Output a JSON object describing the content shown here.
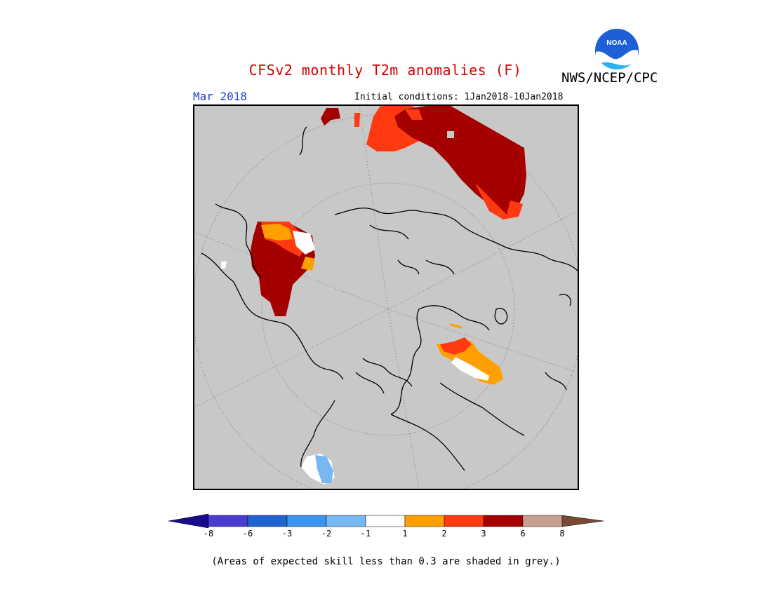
{
  "header": {
    "title": "CFSv2 monthly T2m anomalies (F)",
    "agency": "NWS/NCEP/CPC",
    "logo_text": "NOAA",
    "valid_month": "Mar 2018",
    "initial_conditions": "Initial conditions: 1Jan2018-10Jan2018"
  },
  "colors": {
    "title": "#d50000",
    "valid_month": "#1d3fe0",
    "map_background": "#c8c8c8",
    "coast": "#000000",
    "graticule": "#888888"
  },
  "legend": {
    "bins": [
      {
        "range": "< -8",
        "color": "#1a0a8c"
      },
      {
        "range": "-8 to -6",
        "color": "#4b3cd0"
      },
      {
        "range": "-6 to -3",
        "color": "#1f63d0"
      },
      {
        "range": "-3 to -2",
        "color": "#3b95f0"
      },
      {
        "range": "-2 to -1",
        "color": "#78b8f2"
      },
      {
        "range": "-1 to 1",
        "color": "#ffffff"
      },
      {
        "range": "1 to 2",
        "color": "#ffa000"
      },
      {
        "range": "2 to 3",
        "color": "#ff3a10"
      },
      {
        "range": "3 to 6",
        "color": "#a50000"
      },
      {
        "range": "6 to 8",
        "color": "#c8a090"
      },
      {
        "range": "> 8",
        "color": "#7a4a30"
      }
    ],
    "ticks": [
      "-8",
      "-6",
      "-3",
      "-2",
      "-1",
      "1",
      "2",
      "3",
      "6",
      "8"
    ]
  },
  "footnote": "(Areas of expected skill less than 0.3 are shaded in grey.)"
}
